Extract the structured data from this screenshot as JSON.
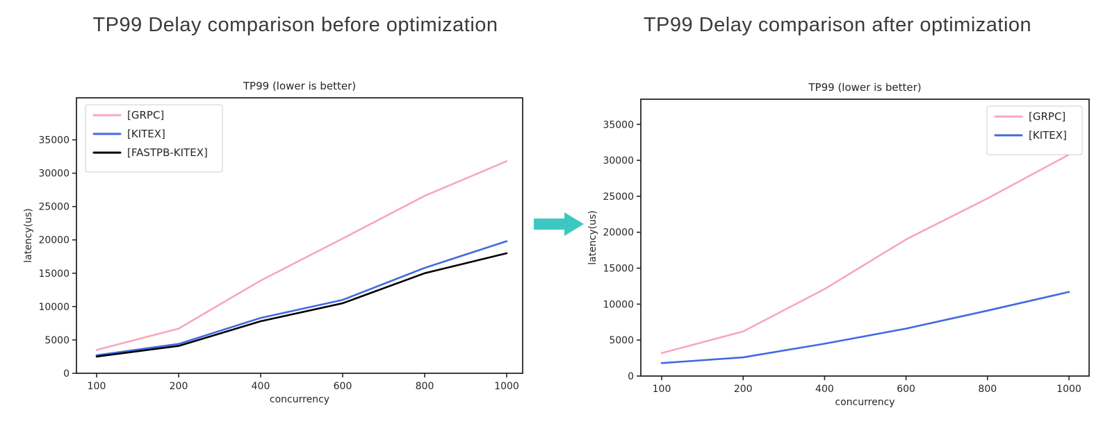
{
  "headers": {
    "left": "TP99 Delay comparison before optimization",
    "right": "TP99 Delay comparison after optimization"
  },
  "arrow": {
    "icon": "right-arrow",
    "color": "#3cc8c0"
  },
  "chart_data": [
    {
      "id": "before",
      "type": "line",
      "title": "TP99 (lower is better)",
      "xlabel": "concurrency",
      "ylabel": "latency(us)",
      "categories": [
        100,
        200,
        400,
        600,
        800,
        1000
      ],
      "yticks": [
        0,
        5000,
        10000,
        15000,
        20000,
        25000,
        30000,
        35000
      ],
      "ylim": [
        0,
        41300
      ],
      "grid": false,
      "legend_position": "top-left",
      "series": [
        {
          "name": "[GRPC]",
          "color": "#f8a7ba",
          "values": [
            3500,
            6700,
            13900,
            20200,
            26600,
            31800
          ]
        },
        {
          "name": "[KITEX]",
          "color": "#4169e1",
          "values": [
            2700,
            4400,
            8300,
            11000,
            15800,
            19800
          ]
        },
        {
          "name": "[FASTPB-KITEX]",
          "color": "#000000",
          "values": [
            2500,
            4100,
            7800,
            10500,
            15000,
            18000
          ]
        }
      ]
    },
    {
      "id": "after",
      "type": "line",
      "title": "TP99 (lower is better)",
      "xlabel": "concurrency",
      "ylabel": "latency(us)",
      "categories": [
        100,
        200,
        400,
        600,
        800,
        1000
      ],
      "yticks": [
        0,
        5000,
        10000,
        15000,
        20000,
        25000,
        30000,
        35000
      ],
      "ylim": [
        0,
        38500
      ],
      "grid": false,
      "legend_position": "top-right",
      "series": [
        {
          "name": "[GRPC]",
          "color": "#f8a7ba",
          "values": [
            3200,
            6200,
            12100,
            19000,
            24700,
            30800
          ]
        },
        {
          "name": "[KITEX]",
          "color": "#4169e1",
          "values": [
            1800,
            2600,
            4500,
            6600,
            9100,
            11700
          ]
        }
      ]
    }
  ]
}
